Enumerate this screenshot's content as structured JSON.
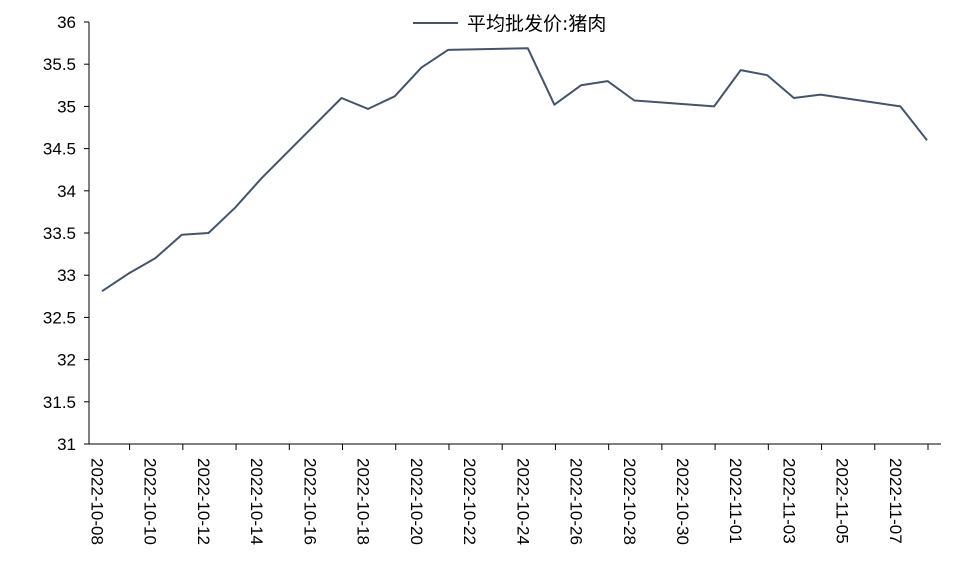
{
  "chart_data": {
    "type": "line",
    "title": "",
    "xlabel": "",
    "ylabel": "",
    "ylim": [
      31,
      36
    ],
    "yticks": [
      "31",
      "31.5",
      "32",
      "32.5",
      "33",
      "33.5",
      "34",
      "34.5",
      "35",
      "35.5",
      "36"
    ],
    "x_tick_labels": [
      "2022-10-08",
      "2022-10-10",
      "2022-10-12",
      "2022-10-14",
      "2022-10-16",
      "2022-10-18",
      "2022-10-20",
      "2022-10-22",
      "2022-10-24",
      "2022-10-26",
      "2022-10-28",
      "2022-10-30",
      "2022-11-01",
      "2022-11-03",
      "2022-11-05",
      "2022-11-07"
    ],
    "x": [
      "2022-10-08",
      "2022-10-09",
      "2022-10-10",
      "2022-10-11",
      "2022-10-12",
      "2022-10-13",
      "2022-10-14",
      "2022-10-17",
      "2022-10-18",
      "2022-10-19",
      "2022-10-20",
      "2022-10-21",
      "2022-10-24",
      "2022-10-25",
      "2022-10-26",
      "2022-10-27",
      "2022-10-28",
      "2022-10-31",
      "2022-11-01",
      "2022-11-02",
      "2022-11-03",
      "2022-11-04",
      "2022-11-07",
      "2022-11-08"
    ],
    "series": [
      {
        "name": "平均批发价:猪肉",
        "color": "#44546a",
        "values": [
          32.81,
          33.02,
          33.2,
          33.48,
          33.5,
          33.8,
          34.15,
          35.1,
          34.97,
          35.12,
          35.46,
          35.67,
          35.69,
          35.02,
          35.25,
          35.3,
          35.07,
          35.0,
          35.43,
          35.37,
          35.1,
          35.14,
          35.0,
          34.6
        ]
      }
    ],
    "grid": false,
    "legend": "top-center"
  }
}
